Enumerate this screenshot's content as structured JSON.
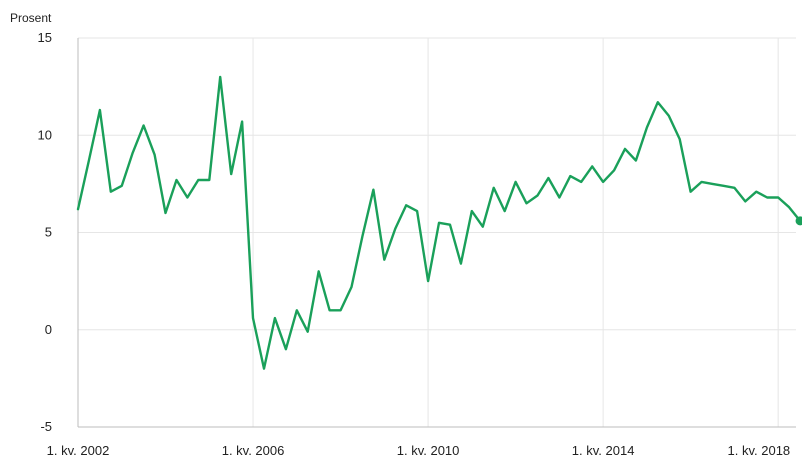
{
  "chart_data": {
    "type": "line",
    "ylabel": "Prosent",
    "ylim": [
      -5,
      15
    ],
    "yticks": [
      15,
      10,
      5,
      0,
      -5
    ],
    "xticks": [
      "1. kv. 2002",
      "1. kv. 2006",
      "1. kv. 2010",
      "1. kv. 2014",
      "1. kv. 2018"
    ],
    "grid": true,
    "line_color": "#1aa05a",
    "series": [
      {
        "x": [
          "1. kv. 2002",
          "2. kv. 2002",
          "3. kv. 2002",
          "4. kv. 2002",
          "1. kv. 2003",
          "2. kv. 2003",
          "3. kv. 2003",
          "4. kv. 2003",
          "1. kv. 2004",
          "2. kv. 2004",
          "3. kv. 2004",
          "4. kv. 2004",
          "1. kv. 2005",
          "2. kv. 2005",
          "3. kv. 2005",
          "4. kv. 2005",
          "1. kv. 2006",
          "2. kv. 2006",
          "3. kv. 2006",
          "4. kv. 2006",
          "1. kv. 2007",
          "2. kv. 2007",
          "3. kv. 2007",
          "4. kv. 2007",
          "1. kv. 2008",
          "2. kv. 2008",
          "3. kv. 2008",
          "4. kv. 2008",
          "1. kv. 2009",
          "2. kv. 2009",
          "3. kv. 2009",
          "4. kv. 2009",
          "1. kv. 2010",
          "2. kv. 2010",
          "3. kv. 2010",
          "4. kv. 2010",
          "1. kv. 2011",
          "2. kv. 2011",
          "3. kv. 2011",
          "4. kv. 2011",
          "1. kv. 2012",
          "2. kv. 2012",
          "3. kv. 2012",
          "4. kv. 2012",
          "1. kv. 2013",
          "2. kv. 2013",
          "3. kv. 2013",
          "4. kv. 2013",
          "1. kv. 2014",
          "2. kv. 2014",
          "3. kv. 2014",
          "4. kv. 2014",
          "1. kv. 2015",
          "2. kv. 2015",
          "3. kv. 2015",
          "4. kv. 2015",
          "1. kv. 2016",
          "2. kv. 2016",
          "3. kv. 2016",
          "4. kv. 2016",
          "1. kv. 2017",
          "2. kv. 2017",
          "3. kv. 2017",
          "4. kv. 2017",
          "1. kv. 2018",
          "2. kv. 2018",
          "3. kv. 2018"
        ],
        "values": [
          6.2,
          8.7,
          11.3,
          7.1,
          7.4,
          9.1,
          10.5,
          9.0,
          6.0,
          7.7,
          6.8,
          7.7,
          7.7,
          13.0,
          8.0,
          10.7,
          0.6,
          -2.0,
          0.6,
          -1.0,
          1.0,
          -0.1,
          3.0,
          1.0,
          1.0,
          2.2,
          4.8,
          7.2,
          3.6,
          5.2,
          6.4,
          6.1,
          2.5,
          5.5,
          5.4,
          3.4,
          6.1,
          5.3,
          7.3,
          6.1,
          7.6,
          6.5,
          6.9,
          7.8,
          6.8,
          7.9,
          7.6,
          8.4,
          7.6,
          8.2,
          9.3,
          8.7,
          10.4,
          11.7,
          11.0,
          9.8,
          7.1,
          7.6,
          7.5,
          7.4,
          7.3,
          6.6,
          7.1,
          6.8,
          6.8,
          6.3,
          5.6
        ]
      }
    ]
  }
}
